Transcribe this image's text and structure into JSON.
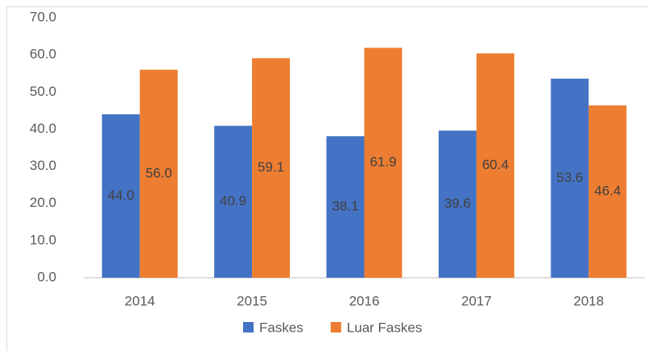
{
  "chart_data": {
    "type": "bar",
    "categories": [
      "2014",
      "2015",
      "2016",
      "2017",
      "2018"
    ],
    "series": [
      {
        "name": "Faskes",
        "color": "#4472c4",
        "values": [
          44.0,
          40.9,
          38.1,
          39.6,
          53.6
        ],
        "value_labels": [
          "44.0",
          "40.9",
          "38.1",
          "39.6",
          "53.6"
        ]
      },
      {
        "name": "Luar Faskes",
        "color": "#ed7d31",
        "values": [
          56.0,
          59.1,
          61.9,
          60.4,
          46.4
        ],
        "value_labels": [
          "56.0",
          "59.1",
          "61.9",
          "60.4",
          "46.4"
        ]
      }
    ],
    "ylim": [
      0,
      70
    ],
    "yticks": [
      {
        "value": 0,
        "label": "0.0"
      },
      {
        "value": 10,
        "label": "10.0"
      },
      {
        "value": 20,
        "label": "20.0"
      },
      {
        "value": 30,
        "label": "30.0"
      },
      {
        "value": 40,
        "label": "40.0"
      },
      {
        "value": 50,
        "label": "50.0"
      },
      {
        "value": 60,
        "label": "60.0"
      },
      {
        "value": 70,
        "label": "70.0"
      }
    ],
    "grid": false,
    "legend": "bottom"
  }
}
